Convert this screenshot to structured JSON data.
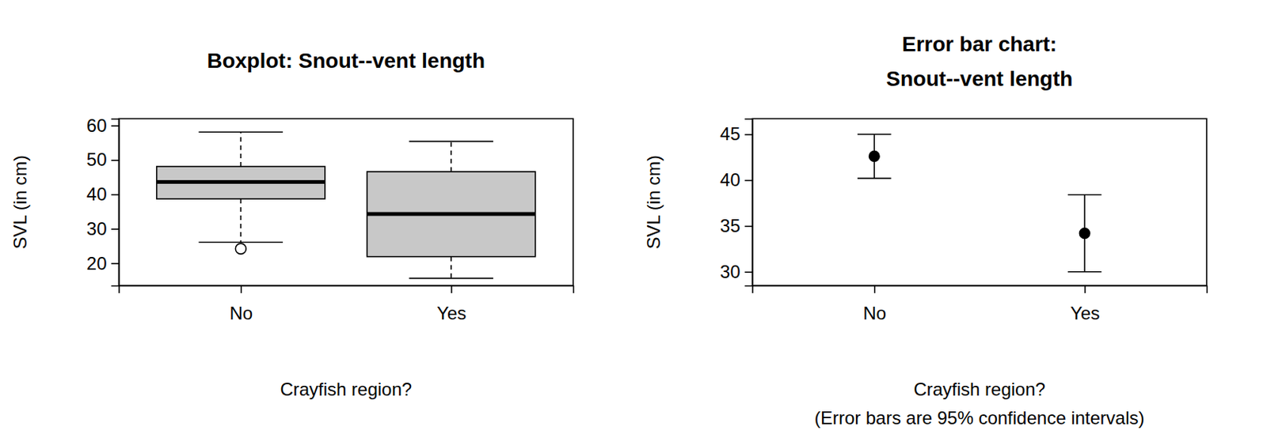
{
  "chart_data": [
    {
      "type": "boxplot",
      "title": "Boxplot: Snout--vent length",
      "xlabel": "Crayfish region?",
      "ylabel": "SVL (in cm)",
      "categories": [
        "No",
        "Yes"
      ],
      "whisker_low": [
        26.1,
        15.6
      ],
      "q1": [
        38.7,
        21.9
      ],
      "median": [
        43.6,
        34.3
      ],
      "q3": [
        48.1,
        46.6
      ],
      "whisker_high": [
        58.1,
        55.4
      ],
      "outliers": [
        [
          24.2
        ],
        []
      ],
      "ylim": [
        13.5,
        62
      ],
      "yticks": [
        20,
        30,
        40,
        50,
        60
      ],
      "color": "#c8c8c8"
    },
    {
      "type": "errorbar",
      "title": [
        "Error bar chart:",
        "Snout--vent length"
      ],
      "xlabel": "Crayfish region?",
      "caption": "(Error bars are 95% confidence intervals)",
      "ylabel": "SVL (in cm)",
      "categories": [
        "No",
        "Yes"
      ],
      "values": [
        42.6,
        34.2
      ],
      "lower": [
        40.2,
        30.0
      ],
      "upper": [
        45.0,
        38.4
      ],
      "ylim": [
        28.5,
        46.7
      ],
      "yticks": [
        30,
        35,
        40,
        45
      ],
      "color": "#000000",
      "marker": "circle"
    }
  ]
}
